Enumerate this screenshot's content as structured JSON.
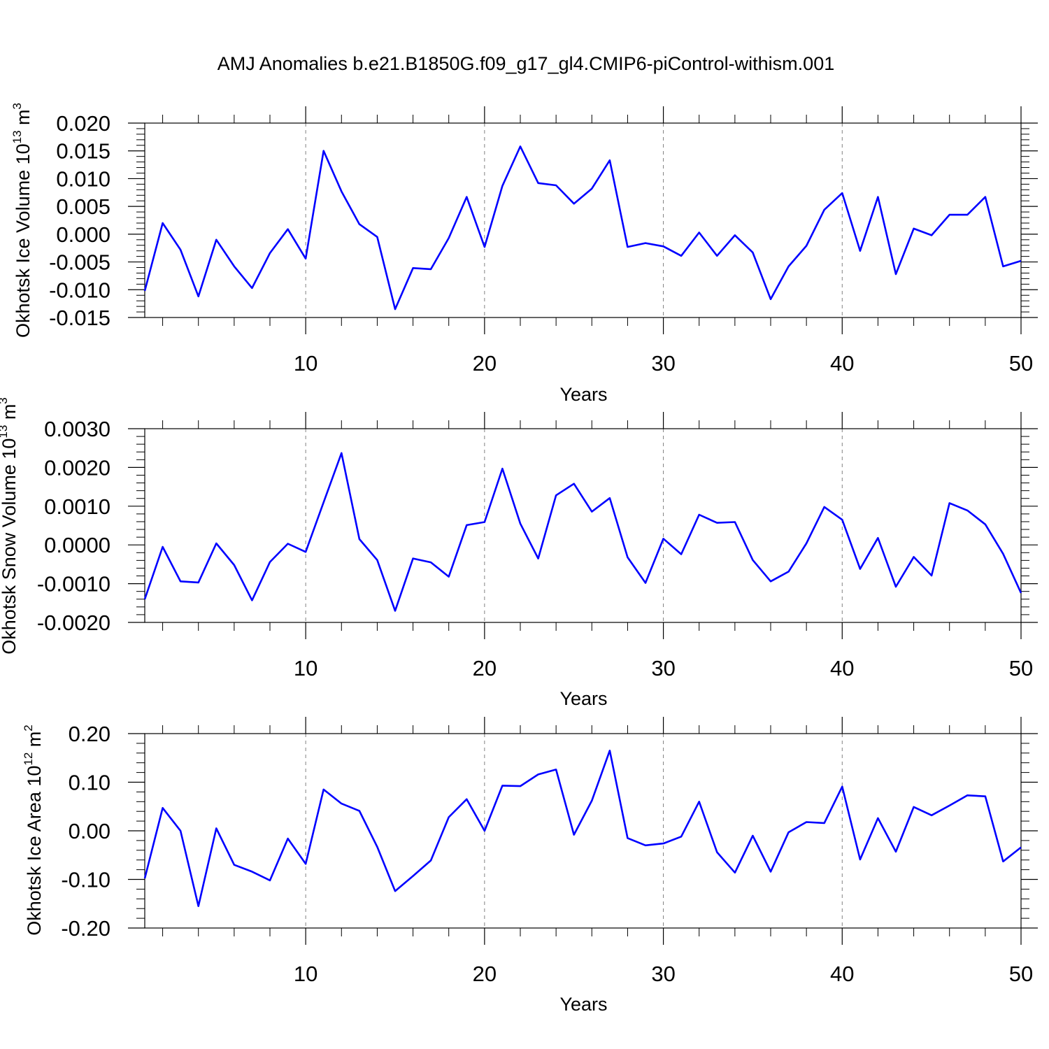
{
  "figure_title": "AMJ Anomalies b.e21.B1850G.f09_g17_gl4.CMIP6-piControl-withism.001",
  "colors": {
    "line": "#0000ff",
    "axis": "#000000",
    "grid": "#808080"
  },
  "chart_data": [
    {
      "type": "line",
      "name": "ice-volume",
      "ylabel_main": "Okhotsk Ice Volume 10",
      "ylabel_exp": "13",
      "ylabel_unit": " m",
      "ylabel_unit_exp": "3",
      "xlabel": "Years",
      "xlim": [
        1,
        50
      ],
      "ylim": [
        -0.015,
        0.02
      ],
      "yticks": [
        "0.020",
        "0.015",
        "0.010",
        "0.005",
        "0.000",
        "-0.005",
        "-0.010",
        "-0.015"
      ],
      "ytick_values": [
        0.02,
        0.015,
        0.01,
        0.005,
        0.0,
        -0.005,
        -0.01,
        -0.015
      ],
      "xticks": [
        "10",
        "20",
        "30",
        "40",
        "50"
      ],
      "xtick_values": [
        10,
        20,
        30,
        40,
        50
      ],
      "x": [
        1,
        2,
        3,
        4,
        5,
        6,
        7,
        8,
        9,
        10,
        11,
        12,
        13,
        14,
        15,
        16,
        17,
        18,
        19,
        20,
        21,
        22,
        23,
        24,
        25,
        26,
        27,
        28,
        29,
        30,
        31,
        32,
        33,
        34,
        35,
        36,
        37,
        38,
        39,
        40,
        41,
        42,
        43,
        44,
        45,
        46,
        47,
        48,
        49,
        50
      ],
      "values": [
        -0.0102,
        0.002,
        -0.0028,
        -0.0112,
        -0.001,
        -0.0058,
        -0.0097,
        -0.0034,
        0.0009,
        -0.0044,
        0.015,
        0.0077,
        0.0018,
        -0.0005,
        -0.0135,
        -0.0061,
        -0.0063,
        -0.0007,
        0.0067,
        -0.0023,
        0.0087,
        0.0158,
        0.0092,
        0.0088,
        0.0055,
        0.0082,
        0.0133,
        -0.0023,
        -0.0016,
        -0.0022,
        -0.0039,
        0.0003,
        -0.0039,
        -0.0002,
        -0.0033,
        -0.0117,
        -0.0058,
        -0.0021,
        0.0044,
        0.0074,
        -0.003,
        0.0067,
        -0.0072,
        0.001,
        -0.0002,
        0.0035,
        0.0035,
        0.0067,
        -0.0058,
        -0.0048
      ]
    },
    {
      "type": "line",
      "name": "snow-volume",
      "ylabel_main": "Okhotsk Snow Volume 10",
      "ylabel_exp": "13",
      "ylabel_unit": " m",
      "ylabel_unit_exp": "3",
      "xlabel": "Years",
      "xlim": [
        1,
        50
      ],
      "ylim": [
        -0.002,
        0.003
      ],
      "yticks": [
        "0.0030",
        "0.0020",
        "0.0010",
        "0.0000",
        "-0.0010",
        "-0.0020"
      ],
      "ytick_values": [
        0.003,
        0.002,
        0.001,
        0.0,
        -0.001,
        -0.002
      ],
      "xticks": [
        "10",
        "20",
        "30",
        "40",
        "50"
      ],
      "xtick_values": [
        10,
        20,
        30,
        40,
        50
      ],
      "x": [
        1,
        2,
        3,
        4,
        5,
        6,
        7,
        8,
        9,
        10,
        11,
        12,
        13,
        14,
        15,
        16,
        17,
        18,
        19,
        20,
        21,
        22,
        23,
        24,
        25,
        26,
        27,
        28,
        29,
        30,
        31,
        32,
        33,
        34,
        35,
        36,
        37,
        38,
        39,
        40,
        41,
        42,
        43,
        44,
        45,
        46,
        47,
        48,
        49,
        50
      ],
      "values": [
        -0.0014,
        -5e-05,
        -0.00094,
        -0.00097,
        4e-05,
        -0.00052,
        -0.00143,
        -0.00044,
        3e-05,
        -0.00018,
        0.0011,
        0.00237,
        0.00015,
        -0.00039,
        -0.0017,
        -0.00035,
        -0.00045,
        -0.00082,
        0.00051,
        0.00059,
        0.00197,
        0.00055,
        -0.00035,
        0.00128,
        0.00158,
        0.00086,
        0.00121,
        -0.00032,
        -0.00098,
        0.00016,
        -0.00024,
        0.00078,
        0.00057,
        0.00059,
        -0.00039,
        -0.00094,
        -0.00069,
        4e-05,
        0.00098,
        0.00065,
        -0.00062,
        0.00018,
        -0.00108,
        -0.00031,
        -0.00079,
        0.00108,
        0.00089,
        0.00053,
        -0.00023,
        -0.00124
      ]
    },
    {
      "type": "line",
      "name": "ice-area",
      "ylabel_main": "Okhotsk Ice Area 10",
      "ylabel_exp": "12",
      "ylabel_unit": " m",
      "ylabel_unit_exp": "2",
      "xlabel": "Years",
      "xlim": [
        1,
        50
      ],
      "ylim": [
        -0.2,
        0.2
      ],
      "yticks": [
        "0.20",
        "0.10",
        "0.00",
        "-0.10",
        "-0.20"
      ],
      "ytick_values": [
        0.2,
        0.1,
        0.0,
        -0.1,
        -0.2
      ],
      "xticks": [
        "10",
        "20",
        "30",
        "40",
        "50"
      ],
      "xtick_values": [
        10,
        20,
        30,
        40,
        50
      ],
      "x": [
        1,
        2,
        3,
        4,
        5,
        6,
        7,
        8,
        9,
        10,
        11,
        12,
        13,
        14,
        15,
        16,
        17,
        18,
        19,
        20,
        21,
        22,
        23,
        24,
        25,
        26,
        27,
        28,
        29,
        30,
        31,
        32,
        33,
        34,
        35,
        36,
        37,
        38,
        39,
        40,
        41,
        42,
        43,
        44,
        45,
        46,
        47,
        48,
        49,
        50
      ],
      "values": [
        -0.098,
        0.047,
        0.0,
        -0.155,
        0.005,
        -0.07,
        -0.084,
        -0.102,
        -0.016,
        -0.068,
        0.085,
        0.056,
        0.041,
        -0.033,
        -0.124,
        -0.093,
        -0.061,
        0.028,
        0.065,
        0.0,
        0.093,
        0.092,
        0.116,
        0.126,
        -0.008,
        0.062,
        0.165,
        -0.015,
        -0.03,
        -0.026,
        -0.012,
        0.06,
        -0.044,
        -0.086,
        -0.01,
        -0.084,
        -0.003,
        0.018,
        0.016,
        0.091,
        -0.059,
        0.026,
        -0.043,
        0.049,
        0.032,
        0.052,
        0.073,
        0.071,
        -0.063,
        -0.034
      ]
    }
  ]
}
